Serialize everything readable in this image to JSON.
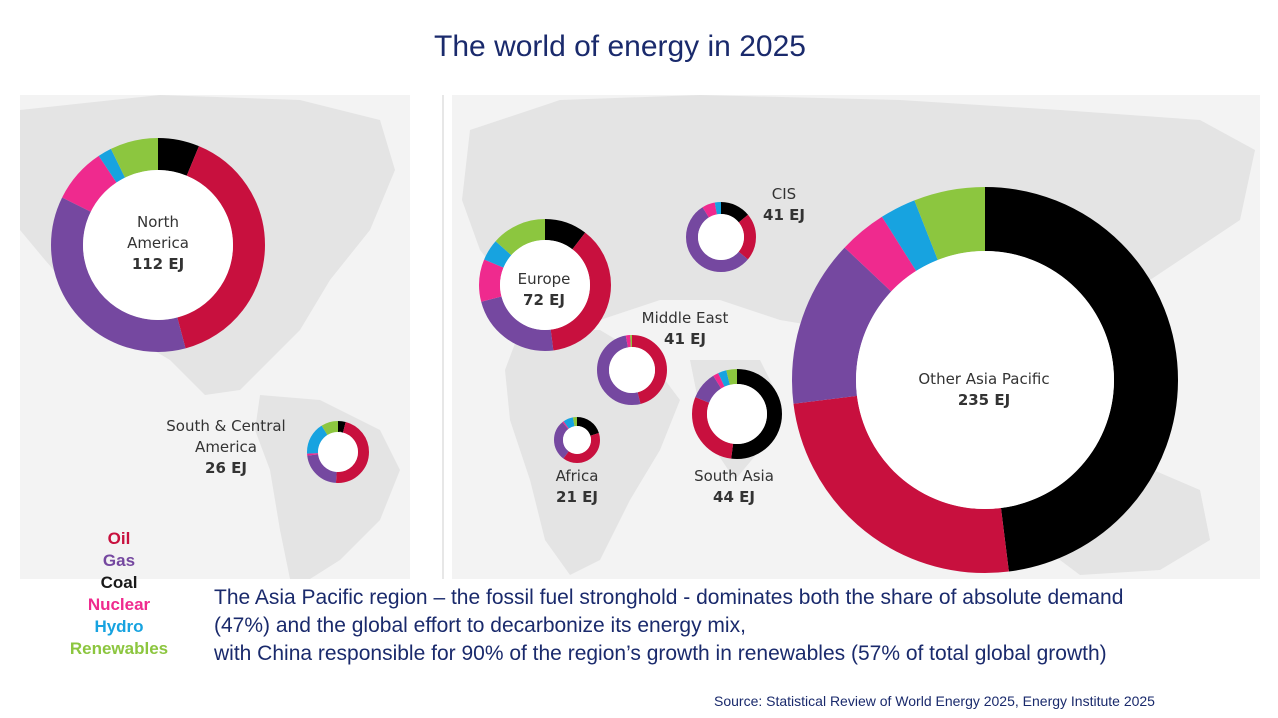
{
  "title": "The world of energy in 2025",
  "colors": {
    "Oil": "#c8103e",
    "Gas": "#7548a0",
    "Coal": "#000000",
    "Nuclear": "#ef2a8e",
    "Hydro": "#17a3e0",
    "Renewables": "#8cc63f"
  },
  "legend": [
    "Oil",
    "Gas",
    "Coal",
    "Nuclear",
    "Hydro",
    "Renewables"
  ],
  "legend_text_colors": {
    "Oil": "#c8103e",
    "Gas": "#7548a0",
    "Coal": "#1a1a1a",
    "Nuclear": "#ef2a8e",
    "Hydro": "#17a3e0",
    "Renewables": "#8cc63f"
  },
  "message": {
    "line1": "The Asia Pacific region – the fossil fuel stronghold - dominates both the share of absolute demand",
    "line2": "(47%) and the global effort to decarbonize its energy mix,",
    "line3": "with China responsible for 90% of the region’s growth in renewables (57% of total global growth)"
  },
  "source": "Source: Statistical Review of World Energy 2025, Energy Institute 2025",
  "chart_data": {
    "type": "pie",
    "variant": "donut",
    "unit": "EJ",
    "series_order": [
      "Coal",
      "Oil",
      "Gas",
      "Nuclear",
      "Hydro",
      "Renewables"
    ],
    "regions": [
      {
        "name": "North America",
        "label_lines": [
          "North",
          "America"
        ],
        "total": "112 EJ",
        "total_value": 112,
        "shares": {
          "Coal": 6,
          "Oil": 38,
          "Gas": 35,
          "Nuclear": 8,
          "Hydro": 2,
          "Renewables": 7
        }
      },
      {
        "name": "South & Central America",
        "label_lines": [
          "South & Central",
          "America"
        ],
        "total": "26 EJ",
        "total_value": 26,
        "shares": {
          "Coal": 4,
          "Oil": 47,
          "Gas": 22,
          "Nuclear": 1,
          "Hydro": 17,
          "Renewables": 9
        }
      },
      {
        "name": "Europe",
        "label_lines": [
          "Europe"
        ],
        "total": "72 EJ",
        "total_value": 72,
        "shares": {
          "Coal": 10,
          "Oil": 36,
          "Gas": 22,
          "Nuclear": 10,
          "Hydro": 5,
          "Renewables": 13
        }
      },
      {
        "name": "CIS",
        "label_lines": [
          "CIS"
        ],
        "total": "41 EJ",
        "total_value": 41,
        "shares": {
          "Coal": 14,
          "Oil": 22,
          "Gas": 55,
          "Nuclear": 6,
          "Hydro": 3,
          "Renewables": 0
        }
      },
      {
        "name": "Middle East",
        "label_lines": [
          "Middle East"
        ],
        "total": "41 EJ",
        "total_value": 41,
        "shares": {
          "Coal": 0,
          "Oil": 46,
          "Gas": 51,
          "Nuclear": 2,
          "Hydro": 0,
          "Renewables": 1
        }
      },
      {
        "name": "Africa",
        "label_lines": [
          "Africa"
        ],
        "total": "21 EJ",
        "total_value": 21,
        "shares": {
          "Coal": 20,
          "Oil": 40,
          "Gas": 29,
          "Nuclear": 1,
          "Hydro": 7,
          "Renewables": 3
        }
      },
      {
        "name": "South Asia",
        "label_lines": [
          "South Asia"
        ],
        "total": "44 EJ",
        "total_value": 44,
        "shares": {
          "Coal": 52,
          "Oil": 29,
          "Gas": 10,
          "Nuclear": 2,
          "Hydro": 3,
          "Renewables": 4
        }
      },
      {
        "name": "Other Asia Pacific",
        "label_lines": [
          "Other Asia Pacific"
        ],
        "total": "235 EJ",
        "total_value": 235,
        "shares": {
          "Coal": 48,
          "Oil": 25,
          "Gas": 14,
          "Nuclear": 4,
          "Hydro": 3,
          "Renewables": 6
        }
      }
    ]
  }
}
